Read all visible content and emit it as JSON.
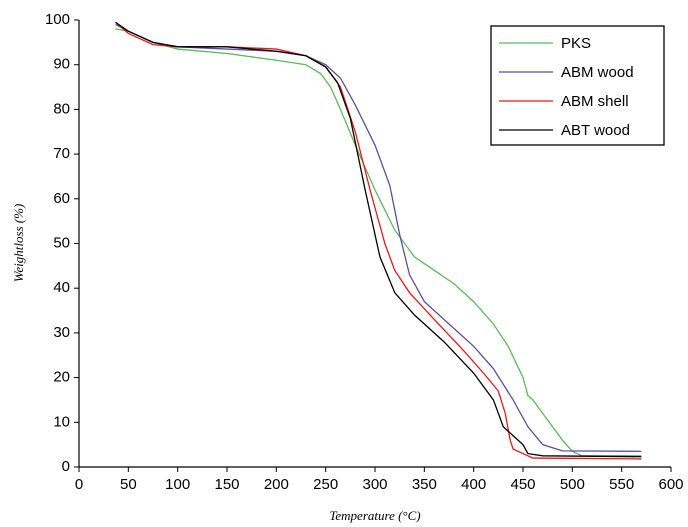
{
  "chart_data": {
    "type": "line",
    "xlabel": "Temperature (°C)",
    "ylabel": "Weightloss (%)",
    "xlim": [
      0,
      600
    ],
    "ylim": [
      0,
      100
    ],
    "xticks": [
      0,
      50,
      100,
      150,
      200,
      250,
      300,
      350,
      400,
      450,
      500,
      550,
      600
    ],
    "yticks": [
      0,
      10,
      20,
      30,
      40,
      50,
      60,
      70,
      80,
      90,
      100
    ],
    "legend": "top-right",
    "series": [
      {
        "name": "PKS",
        "color": "#5cb85c",
        "x": [
          37,
          50,
          75,
          100,
          150,
          200,
          230,
          245,
          255,
          265,
          280,
          300,
          320,
          340,
          360,
          380,
          400,
          420,
          435,
          450,
          455,
          460,
          470,
          480,
          490,
          500,
          510,
          570
        ],
        "values": [
          98,
          97.5,
          95,
          93.5,
          92.5,
          91,
          90,
          88,
          85,
          80,
          72,
          62,
          53,
          47,
          44,
          41,
          37,
          32,
          27,
          20,
          16,
          15,
          12,
          9,
          6,
          3.5,
          2.5,
          2.5
        ]
      },
      {
        "name": "ABM wood",
        "color": "#5b4ea0",
        "x": [
          37,
          50,
          75,
          100,
          150,
          200,
          230,
          250,
          265,
          280,
          300,
          315,
          325,
          335,
          350,
          375,
          400,
          420,
          440,
          455,
          470,
          490,
          570
        ],
        "values": [
          99,
          97.5,
          95,
          94,
          93.5,
          93,
          92,
          90,
          87,
          81,
          72,
          63,
          52,
          43,
          37,
          32,
          27,
          22,
          15,
          9,
          5,
          3.6,
          3.5
        ]
      },
      {
        "name": "ABM shell",
        "color": "#e41a1c",
        "x": [
          37,
          50,
          75,
          100,
          150,
          200,
          230,
          250,
          265,
          280,
          295,
          310,
          320,
          335,
          360,
          390,
          410,
          425,
          432,
          437,
          440,
          450,
          460,
          570
        ],
        "values": [
          99.5,
          97,
          94.5,
          94,
          94,
          93.5,
          92,
          89.5,
          85,
          75,
          62,
          50,
          44,
          39,
          33,
          26,
          21,
          17,
          12,
          6,
          4,
          3,
          2,
          1.8
        ]
      },
      {
        "name": "ABT wood",
        "color": "#000000",
        "x": [
          37,
          50,
          75,
          100,
          150,
          200,
          230,
          250,
          262,
          275,
          290,
          305,
          320,
          340,
          370,
          400,
          420,
          430,
          440,
          450,
          455,
          470,
          570
        ],
        "values": [
          99.5,
          97.5,
          95,
          94,
          94,
          93,
          92,
          89.5,
          86,
          78,
          62,
          47,
          39,
          34,
          28,
          21,
          15,
          9,
          7,
          5,
          3,
          2.5,
          2.3
        ]
      }
    ]
  }
}
